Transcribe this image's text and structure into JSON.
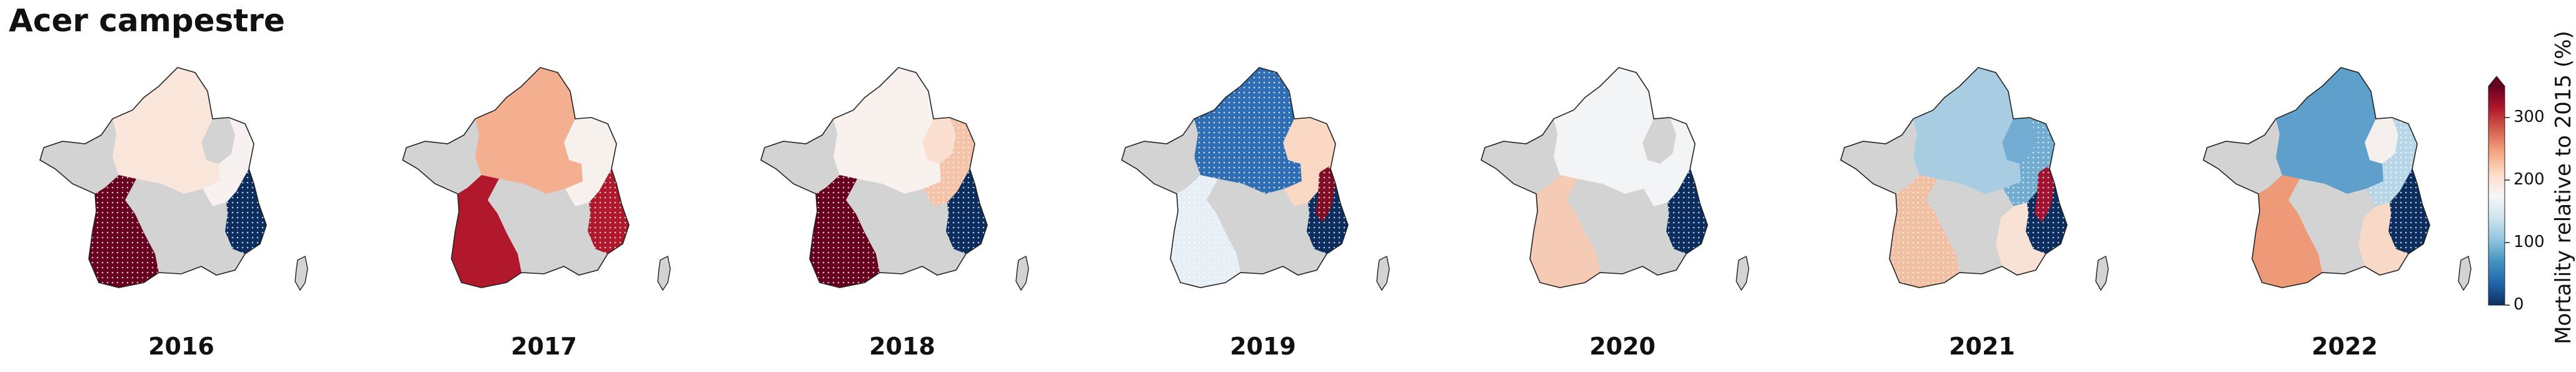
{
  "title": "Acer campestre",
  "colorbar": {
    "label": "Mortality relative to 2015 (%)",
    "ticks": [
      {
        "value": 0,
        "label": "0"
      },
      {
        "value": 100,
        "label": "100"
      },
      {
        "value": 200,
        "label": "200"
      },
      {
        "value": 300,
        "label": "300"
      }
    ],
    "range": [
      0,
      350
    ],
    "extend": "max",
    "colors": [
      "#0b2e5e",
      "#2166ac",
      "#4393c3",
      "#92c5de",
      "#d1e5f0",
      "#f7f7f7",
      "#fddbc7",
      "#f4a582",
      "#d6604d",
      "#b2182b",
      "#67001f"
    ]
  },
  "nodata_color": "#d3d3d3",
  "panels": [
    {
      "year": "2016",
      "regions": {
        "north": {
          "value": 115,
          "color": "#fbe6dc",
          "hatch": false
        },
        "northeast": {
          "value": null,
          "color": "#d3d3d3",
          "hatch": false
        },
        "east": {
          "value": 105,
          "color": "#f7f2ef",
          "hatch": false
        },
        "alps": {
          "value": 0,
          "color": "#0b2e5e",
          "hatch": true
        },
        "southwest": {
          "value": 350,
          "color": "#67001f",
          "hatch": true
        },
        "southeast": {
          "value": null,
          "color": "#d3d3d3",
          "hatch": false
        },
        "south": {
          "value": null,
          "color": "#d3d3d3",
          "hatch": false
        },
        "west": {
          "value": null,
          "color": "#d3d3d3",
          "hatch": false
        }
      }
    },
    {
      "year": "2017",
      "regions": {
        "north": {
          "value": 180,
          "color": "#f4ae90",
          "hatch": false
        },
        "northeast": {
          "value": 105,
          "color": "#f7f1ee",
          "hatch": false
        },
        "east": {
          "value": 105,
          "color": "#f7f1ee",
          "hatch": false
        },
        "alps": {
          "value": 300,
          "color": "#b2182b",
          "hatch": true
        },
        "southwest": {
          "value": 300,
          "color": "#b2182b",
          "hatch": false
        },
        "southeast": {
          "value": null,
          "color": "#d3d3d3",
          "hatch": false
        },
        "south": {
          "value": null,
          "color": "#d3d3d3",
          "hatch": false
        },
        "west": {
          "value": null,
          "color": "#d3d3d3",
          "hatch": false
        }
      }
    },
    {
      "year": "2018",
      "regions": {
        "north": {
          "value": 105,
          "color": "#f8f1ee",
          "hatch": false
        },
        "northeast": {
          "value": 120,
          "color": "#fbe0d2",
          "hatch": false
        },
        "east": {
          "value": 150,
          "color": "#f6c3a8",
          "hatch": true
        },
        "alps": {
          "value": 0,
          "color": "#0b2e5e",
          "hatch": true
        },
        "southwest": {
          "value": 350,
          "color": "#67001f",
          "hatch": true
        },
        "southeast": {
          "value": null,
          "color": "#d3d3d3",
          "hatch": false
        },
        "south": {
          "value": null,
          "color": "#d3d3d3",
          "hatch": false
        },
        "west": {
          "value": null,
          "color": "#d3d3d3",
          "hatch": false
        }
      }
    },
    {
      "year": "2019",
      "regions": {
        "north": {
          "value": 25,
          "color": "#2f6eb4",
          "hatch": true
        },
        "northeast": {
          "value": 130,
          "color": "#fbd8c3",
          "hatch": false
        },
        "east": {
          "value": 130,
          "color": "#fbd8c3",
          "hatch": false
        },
        "alps": {
          "value": 0,
          "color": "#0b2e5e",
          "hatch": true
        },
        "southwest": {
          "value": 92,
          "color": "#e6eff5",
          "hatch": true
        },
        "southeast": {
          "value": null,
          "color": "#d3d3d3",
          "hatch": false
        },
        "south": {
          "value": null,
          "color": "#d3d3d3",
          "hatch": false
        },
        "west": {
          "value": null,
          "color": "#d3d3d3",
          "hatch": false
        },
        "jura": {
          "value": 340,
          "color": "#7f0d24",
          "hatch": true
        }
      }
    },
    {
      "year": "2020",
      "regions": {
        "north": {
          "value": 98,
          "color": "#f3f4f5",
          "hatch": false
        },
        "northeast": {
          "value": null,
          "color": "#d3d3d3",
          "hatch": false
        },
        "east": {
          "value": 98,
          "color": "#f3f4f5",
          "hatch": false
        },
        "alps": {
          "value": 0,
          "color": "#0b2e5e",
          "hatch": true
        },
        "southwest": {
          "value": 140,
          "color": "#f5cbb5",
          "hatch": false
        },
        "southeast": {
          "value": null,
          "color": "#d3d3d3",
          "hatch": false
        },
        "south": {
          "value": null,
          "color": "#d3d3d3",
          "hatch": false
        },
        "west": {
          "value": null,
          "color": "#d3d3d3",
          "hatch": false
        }
      }
    },
    {
      "year": "2021",
      "regions": {
        "north": {
          "value": 70,
          "color": "#a8cde3",
          "hatch": false
        },
        "northeast": {
          "value": 55,
          "color": "#72acd2",
          "hatch": false
        },
        "east": {
          "value": 55,
          "color": "#72acd2",
          "hatch": true
        },
        "alps": {
          "value": 0,
          "color": "#0b2e5e",
          "hatch": true
        },
        "southwest": {
          "value": 150,
          "color": "#f3bfa2",
          "hatch": true
        },
        "southeast": {
          "value": 120,
          "color": "#f8e2d6",
          "hatch": false
        },
        "south": {
          "value": null,
          "color": "#d3d3d3",
          "hatch": false
        },
        "west": {
          "value": null,
          "color": "#d3d3d3",
          "hatch": false
        },
        "jura": {
          "value": 320,
          "color": "#a11230",
          "hatch": true
        }
      }
    },
    {
      "year": "2022",
      "regions": {
        "north": {
          "value": 40,
          "color": "#5e9fcb",
          "hatch": false
        },
        "northeast": {
          "value": 105,
          "color": "#f5f0ee",
          "hatch": false
        },
        "east": {
          "value": 75,
          "color": "#b7d6e8",
          "hatch": true
        },
        "alps": {
          "value": 0,
          "color": "#0b2e5e",
          "hatch": true
        },
        "southwest": {
          "value": 185,
          "color": "#ee9a78",
          "hatch": false
        },
        "southeast": {
          "value": 130,
          "color": "#f8d8c6",
          "hatch": false
        },
        "south": {
          "value": null,
          "color": "#d3d3d3",
          "hatch": false
        },
        "west": {
          "value": null,
          "color": "#d3d3d3",
          "hatch": false
        }
      }
    }
  ]
}
